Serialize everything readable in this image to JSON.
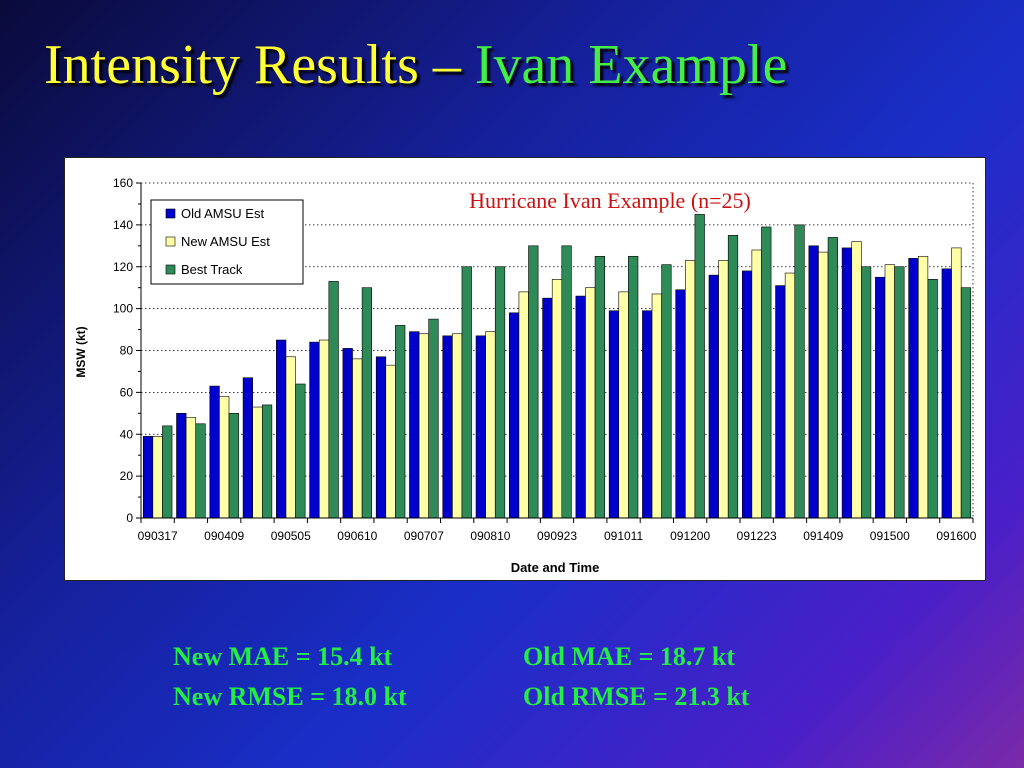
{
  "slide": {
    "title_part1": "Intensity Results – ",
    "title_part2": "Ivan Example",
    "stats": {
      "new_mae": "New MAE = 15.4 kt",
      "old_mae": "Old MAE = 18.7 kt",
      "new_rmse": "New RMSE = 18.0 kt",
      "old_rmse": "Old RMSE = 21.3 kt"
    }
  },
  "chart_data": {
    "type": "bar",
    "title": "Hurricane Ivan Example (n=25)",
    "xlabel": "Date and Time",
    "ylabel": "MSW (kt)",
    "ylim": [
      0,
      160
    ],
    "yticks": [
      0,
      20,
      40,
      60,
      80,
      100,
      120,
      140,
      160
    ],
    "xtick_labels": [
      "090317",
      "090409",
      "090505",
      "090610",
      "090707",
      "090810",
      "090923",
      "091011",
      "091200",
      "091223",
      "091409",
      "091500",
      "091600"
    ],
    "categories": [
      "090317",
      "",
      "090409",
      "",
      "090505",
      "",
      "090610",
      "",
      "090707",
      "",
      "090810",
      "",
      "090923",
      "",
      "091011",
      "",
      "091200",
      "",
      "091223",
      "",
      "091409",
      "",
      "091500",
      "",
      "091600"
    ],
    "legend_position": "top-left",
    "grid": true,
    "series": [
      {
        "name": "Old AMSU Est",
        "color": "#0000cc",
        "values": [
          39,
          50,
          63,
          67,
          85,
          84,
          81,
          77,
          89,
          87,
          87,
          98,
          105,
          106,
          99,
          99,
          109,
          116,
          118,
          111,
          130,
          129,
          115,
          124,
          119
        ]
      },
      {
        "name": "New AMSU Est",
        "color": "#ffffa8",
        "values": [
          39,
          48,
          58,
          53,
          77,
          85,
          76,
          73,
          88,
          88,
          89,
          108,
          114,
          110,
          108,
          107,
          123,
          123,
          128,
          117,
          127,
          132,
          121,
          125,
          129
        ]
      },
      {
        "name": "Best Track",
        "color": "#2e8b57",
        "values": [
          44,
          45,
          50,
          54,
          64,
          113,
          110,
          92,
          95,
          120,
          120,
          130,
          130,
          125,
          125,
          121,
          145,
          135,
          139,
          140,
          134,
          120,
          120,
          114,
          110
        ]
      }
    ]
  }
}
